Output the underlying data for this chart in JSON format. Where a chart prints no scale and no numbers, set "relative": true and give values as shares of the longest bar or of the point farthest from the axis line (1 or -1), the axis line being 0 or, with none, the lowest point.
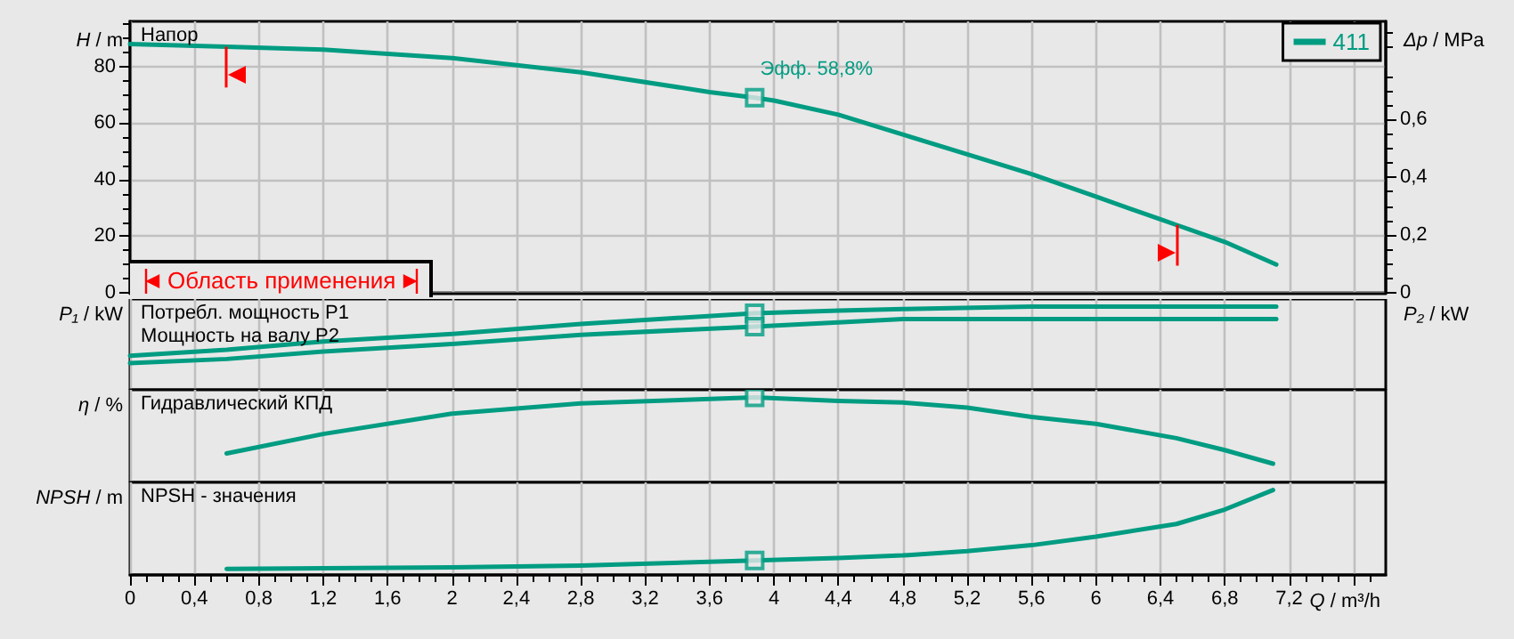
{
  "chart_data": [
    {
      "type": "line",
      "ylabel": "H / m",
      "y2label": "Δp / MPa",
      "xlim": [
        0,
        7.8
      ],
      "xticks": [
        0,
        0.4,
        0.8,
        1.2,
        1.6,
        2,
        2.4,
        2.8,
        3.2,
        3.6,
        4,
        4.4,
        4.8,
        5.2,
        5.6,
        6,
        6.4,
        6.8,
        7.2,
        7.6
      ],
      "ylim": [
        0,
        96
      ],
      "yticks": [
        0,
        20,
        40,
        60,
        80
      ],
      "y2lim": [
        0,
        0.94
      ],
      "y2ticks": [
        0,
        {
          "value": 0.2,
          "label": "0,2"
        },
        {
          "value": 0.4,
          "label": "0,4"
        },
        {
          "value": 0.6,
          "label": "0,6"
        }
      ],
      "grid": true,
      "legend": "top right",
      "tick_labels": "y",
      "marker": "none",
      "series": [
        {
          "name": "411",
          "color": "#009c82",
          "x": [
            0,
            0.6,
            1.2,
            2.0,
            2.8,
            3.6,
            3.88,
            4.0,
            4.4,
            4.8,
            5.2,
            5.6,
            6.0,
            6.4,
            6.5,
            6.8,
            7.12
          ],
          "values": [
            88,
            87,
            86,
            83,
            78,
            71,
            69,
            68,
            63,
            56,
            49,
            42,
            34,
            26,
            24,
            18,
            10
          ]
        },
        {
          "type": "scatter",
          "marker": "square",
          "color": "#009c82",
          "x": [
            3.88
          ],
          "values": [
            69
          ]
        }
      ],
      "ref_lines": [
        {
          "axis": "x",
          "value": 0.6,
          "color": "#ff0000"
        },
        {
          "axis": "x",
          "value": 6.5,
          "color": "#ff0000"
        }
      ],
      "annotations": [
        "Напор",
        "Область применения",
        {
          "text": "Эфф. 58,8%",
          "x": 3.88,
          "y": 69
        }
      ]
    },
    {
      "type": "line",
      "relative": true,
      "ylabel": "P₁ / kW",
      "y2label": "P₂ / kW",
      "xlim": [
        0,
        7.8
      ],
      "xticks": [
        0,
        0.4,
        0.8,
        1.2,
        1.6,
        2,
        2.4,
        2.8,
        3.2,
        3.6,
        4,
        4.4,
        4.8,
        5.2,
        5.6,
        6,
        6.4,
        6.8,
        7.2,
        7.6
      ],
      "grid": "x",
      "tick_labels": false,
      "marker": "none",
      "series": [
        {
          "color": "#009c82",
          "x": [
            0,
            0.6,
            1.2,
            2.0,
            2.8,
            3.88,
            4.4,
            4.8,
            5.6,
            6.5,
            7.12
          ],
          "values": [
            0.41,
            0.48,
            0.58,
            0.67,
            0.79,
            0.92,
            0.95,
            0.97,
            1,
            1,
            1
          ]
        },
        {
          "color": "#009c82",
          "x": [
            0,
            0.6,
            1.2,
            2.0,
            2.8,
            3.88,
            4.4,
            4.8,
            5.6,
            6.5,
            7.12
          ],
          "values": [
            0.32,
            0.37,
            0.46,
            0.55,
            0.66,
            0.76,
            0.81,
            0.85,
            0.85,
            0.85,
            0.85
          ]
        },
        {
          "type": "scatter",
          "marker": "square",
          "color": "#009c82",
          "x": [
            3.88,
            3.88
          ],
          "values": [
            0.92,
            0.76
          ]
        }
      ],
      "annotations": [
        "Потребл. мощность P1",
        "Мощность на валу P2"
      ]
    },
    {
      "type": "line",
      "relative": true,
      "ylabel": "η / %",
      "xlim": [
        0,
        7.8
      ],
      "xticks": [
        0,
        0.4,
        0.8,
        1.2,
        1.6,
        2,
        2.4,
        2.8,
        3.2,
        3.6,
        4,
        4.4,
        4.8,
        5.2,
        5.6,
        6,
        6.4,
        6.8,
        7.2,
        7.6
      ],
      "grid": "x",
      "tick_labels": false,
      "marker": "none",
      "series": [
        {
          "color": "#009c82",
          "x": [
            0.6,
            1.2,
            2.0,
            2.8,
            3.88,
            4.4,
            4.8,
            5.2,
            5.6,
            6.0,
            6.5,
            6.8,
            7.1
          ],
          "values": [
            0.34,
            0.57,
            0.81,
            0.93,
            1,
            0.96,
            0.94,
            0.88,
            0.77,
            0.69,
            0.52,
            0.38,
            0.22
          ]
        },
        {
          "type": "scatter",
          "marker": "square",
          "color": "#009c82",
          "x": [
            3.88
          ],
          "values": [
            1
          ]
        }
      ],
      "annotations": [
        "Гидравлический КПД"
      ]
    },
    {
      "type": "line",
      "relative": true,
      "ylabel": "NPSH / m",
      "xlabel": "Q / m³/h",
      "xlim": [
        0,
        7.8
      ],
      "xticks": [
        0,
        {
          "value": 0.4,
          "label": "0,4"
        },
        {
          "value": 0.8,
          "label": "0,8"
        },
        {
          "value": 1.2,
          "label": "1,2"
        },
        {
          "value": 1.6,
          "label": "1,6"
        },
        2,
        {
          "value": 2.4,
          "label": "2,4"
        },
        {
          "value": 2.8,
          "label": "2,8"
        },
        {
          "value": 3.2,
          "label": "3,2"
        },
        {
          "value": 3.6,
          "label": "3,6"
        },
        4,
        {
          "value": 4.4,
          "label": "4,4"
        },
        {
          "value": 4.8,
          "label": "4,8"
        },
        {
          "value": 5.2,
          "label": "5,2"
        },
        {
          "value": 5.6,
          "label": "5,6"
        },
        6,
        {
          "value": 6.4,
          "label": "6,4"
        },
        {
          "value": 6.8,
          "label": "6,8"
        },
        {
          "value": 7.2,
          "label": "7,2"
        },
        {
          "value": 7.6,
          "label": null
        }
      ],
      "grid": "x",
      "tick_labels": "x",
      "marker": "none",
      "series": [
        {
          "color": "#009c82",
          "x": [
            0.6,
            2.0,
            2.8,
            3.88,
            4.4,
            4.8,
            5.2,
            5.6,
            6.0,
            6.5,
            6.8,
            7.1
          ],
          "values": [
            0.07,
            0.09,
            0.11,
            0.17,
            0.2,
            0.23,
            0.28,
            0.35,
            0.45,
            0.6,
            0.77,
            1
          ]
        },
        {
          "type": "scatter",
          "marker": "square",
          "color": "#009c82",
          "x": [
            3.88
          ],
          "values": [
            0.17
          ]
        }
      ],
      "annotations": [
        "NPSH - значения"
      ]
    }
  ]
}
